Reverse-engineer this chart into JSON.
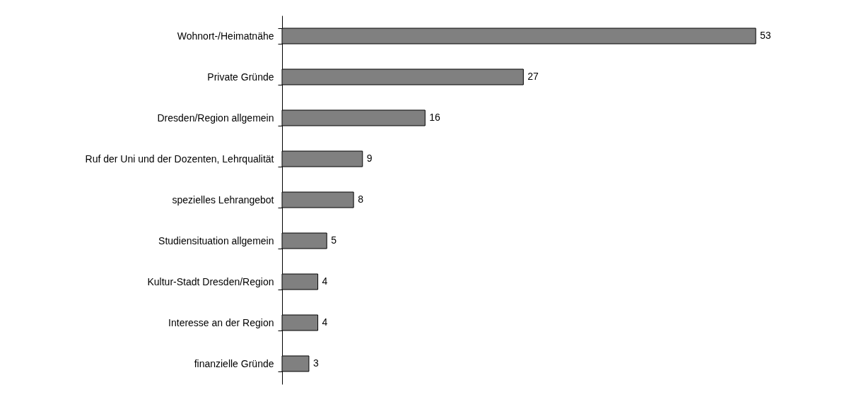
{
  "chart_data": {
    "type": "bar",
    "orientation": "horizontal",
    "categories": [
      "Wohnort-/Heimatnähe",
      "Private Gründe",
      "Dresden/Region allgemein",
      "Ruf der Uni und der Dozenten, Lehrqualität",
      "spezielles Lehrangebot",
      "Studiensituation allgemein",
      "Kultur-Stadt Dresden/Region",
      "Interesse an der Region",
      "finanzielle Gründe"
    ],
    "values": [
      53,
      27,
      16,
      9,
      8,
      5,
      4,
      4,
      3
    ],
    "color": "#808080",
    "data_labels": true
  }
}
